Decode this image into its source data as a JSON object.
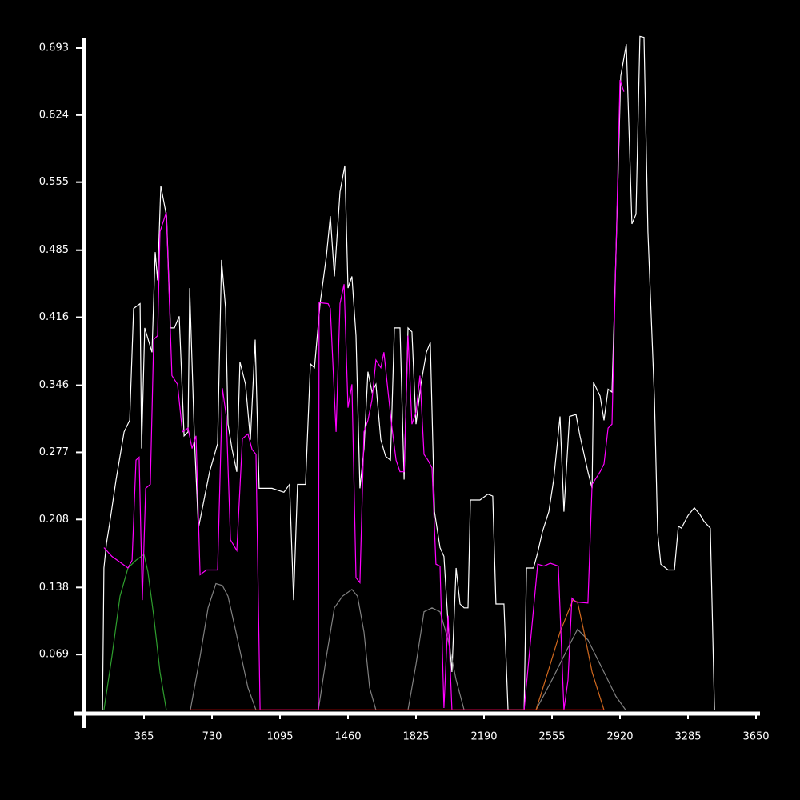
{
  "chart_data": {
    "type": "line",
    "xlim": [
      0,
      3650
    ],
    "ylim": [
      0,
      0.72
    ],
    "xticks": [
      365,
      730,
      1095,
      1460,
      1825,
      2190,
      2555,
      2920,
      3285,
      3650
    ],
    "yticks": [
      0.069,
      0.138,
      0.208,
      0.277,
      0.346,
      0.416,
      0.485,
      0.555,
      0.624,
      0.693
    ],
    "series": [
      {
        "color": "#ffffff",
        "x": [
          142,
          150,
          163,
          180,
          215,
          258,
          288,
          309,
          344,
          352,
          369,
          408,
          425,
          438,
          455,
          486,
          507,
          528,
          554,
          580,
          601,
          610,
          636,
          657,
          717,
          760,
          781,
          803,
          816,
          837,
          863,
          880,
          910,
          936,
          962,
          983,
          1052,
          1116,
          1146,
          1168,
          1189,
          1232,
          1258,
          1280,
          1310,
          1344,
          1365,
          1387,
          1417,
          1443,
          1460,
          1481,
          1503,
          1524,
          1546,
          1567,
          1589,
          1610,
          1636,
          1662,
          1688,
          1709,
          1739,
          1761,
          1782,
          1803,
          1825,
          1851,
          1881,
          1902,
          1924,
          1954,
          1975,
          1997,
          2018,
          2040,
          2061,
          2083,
          2104,
          2117,
          2168,
          2211,
          2237,
          2254,
          2297,
          2319,
          2405,
          2418,
          2456,
          2478,
          2503,
          2538,
          2564,
          2598,
          2619,
          2649,
          2684,
          2705,
          2748,
          2770,
          2778,
          2813,
          2834,
          2856,
          2877,
          2898,
          2924,
          2954,
          2984,
          3006,
          3027,
          3049,
          3070,
          3105,
          3122,
          3139,
          3178,
          3212,
          3233,
          3250,
          3285,
          3319,
          3349,
          3371,
          3405,
          3427
        ],
        "values": [
          0.012,
          0.158,
          0.183,
          0.203,
          0.249,
          0.298,
          0.31,
          0.425,
          0.43,
          0.281,
          0.405,
          0.38,
          0.483,
          0.454,
          0.551,
          0.52,
          0.405,
          0.405,
          0.417,
          0.294,
          0.298,
          0.446,
          0.29,
          0.199,
          0.257,
          0.286,
          0.475,
          0.425,
          0.306,
          0.281,
          0.257,
          0.37,
          0.347,
          0.29,
          0.393,
          0.24,
          0.24,
          0.236,
          0.244,
          0.125,
          0.244,
          0.244,
          0.368,
          0.364,
          0.43,
          0.479,
          0.52,
          0.458,
          0.545,
          0.572,
          0.446,
          0.458,
          0.397,
          0.24,
          0.281,
          0.36,
          0.339,
          0.347,
          0.29,
          0.273,
          0.269,
          0.405,
          0.405,
          0.249,
          0.405,
          0.401,
          0.306,
          0.347,
          0.38,
          0.39,
          0.216,
          0.179,
          0.17,
          0.1,
          0.051,
          0.158,
          0.121,
          0.117,
          0.117,
          0.228,
          0.228,
          0.234,
          0.232,
          0.121,
          0.121,
          0.012,
          0.012,
          0.158,
          0.158,
          0.174,
          0.195,
          0.216,
          0.249,
          0.314,
          0.216,
          0.314,
          0.316,
          0.294,
          0.257,
          0.24,
          0.349,
          0.335,
          0.31,
          0.342,
          0.339,
          0.479,
          0.664,
          0.697,
          0.512,
          0.522,
          0.705,
          0.704,
          0.504,
          0.331,
          0.195,
          0.162,
          0.156,
          0.156,
          0.201,
          0.199,
          0.212,
          0.22,
          0.213,
          0.206,
          0.199,
          0.012
        ]
      },
      {
        "color": "#808080",
        "x": [
          614,
          666,
          709,
          751,
          786,
          816,
          859,
          923,
          966
        ],
        "values": [
          0.012,
          0.067,
          0.117,
          0.142,
          0.14,
          0.129,
          0.092,
          0.035,
          0.012
        ]
      },
      {
        "color": "#808080",
        "x": [
          1301,
          1344,
          1387,
          1430,
          1481,
          1511,
          1546,
          1576,
          1610
        ],
        "values": [
          0.012,
          0.067,
          0.117,
          0.129,
          0.136,
          0.129,
          0.092,
          0.035,
          0.012
        ]
      },
      {
        "color": "#808080",
        "x": [
          1782,
          1825,
          1868,
          1911,
          1954,
          1997,
          2040,
          2083
        ],
        "values": [
          0.012,
          0.059,
          0.113,
          0.117,
          0.113,
          0.084,
          0.043,
          0.012
        ]
      },
      {
        "color": "#808080",
        "x": [
          2469,
          2555,
          2641,
          2692,
          2748,
          2813,
          2898,
          2950
        ],
        "values": [
          0.012,
          0.043,
          0.076,
          0.095,
          0.084,
          0.059,
          0.026,
          0.012
        ]
      },
      {
        "color": "#2e9e2e",
        "x": [
          150,
          193,
          236,
          279,
          322,
          365,
          386,
          417,
          451,
          485
        ],
        "values": [
          0.012,
          0.067,
          0.129,
          0.158,
          0.166,
          0.172,
          0.154,
          0.109,
          0.051,
          0.012
        ]
      },
      {
        "color": "#d2691e",
        "x": [
          2469,
          2533,
          2598,
          2667,
          2692,
          2727,
          2770,
          2834
        ],
        "values": [
          0.012,
          0.051,
          0.092,
          0.125,
          0.123,
          0.092,
          0.051,
          0.012
        ]
      },
      {
        "color": "#ff00ff",
        "x": [
          150,
          193,
          236,
          279,
          301,
          322,
          339,
          356,
          374,
          399,
          417,
          438,
          451,
          485,
          515,
          545,
          571,
          601,
          623,
          644,
          666,
          700,
          760,
          786,
          807,
          829,
          863,
          893,
          923,
          945,
          966,
          988,
          1301,
          1305,
          1353,
          1365,
          1396,
          1417,
          1439,
          1460,
          1481,
          1503,
          1524,
          1546,
          1567,
          1589,
          1610,
          1636,
          1653,
          1675,
          1696,
          1718,
          1739,
          1761,
          1782,
          1803,
          1825,
          1846,
          1868,
          1889,
          1911,
          1932,
          1954,
          1975,
          1997,
          2018,
          2405,
          2478,
          2512,
          2546,
          2589,
          2619,
          2641,
          2662,
          2684,
          2748,
          2770,
          2813,
          2834,
          2856,
          2877,
          2898,
          2920,
          2941
        ],
        "values": [
          0.179,
          0.17,
          0.164,
          0.158,
          0.166,
          0.269,
          0.272,
          0.125,
          0.24,
          0.244,
          0.393,
          0.397,
          0.504,
          0.524,
          0.356,
          0.347,
          0.298,
          0.302,
          0.281,
          0.294,
          0.151,
          0.156,
          0.156,
          0.343,
          0.314,
          0.187,
          0.176,
          0.291,
          0.296,
          0.28,
          0.275,
          0.012,
          0.012,
          0.431,
          0.43,
          0.425,
          0.298,
          0.43,
          0.45,
          0.323,
          0.347,
          0.148,
          0.143,
          0.298,
          0.31,
          0.331,
          0.372,
          0.364,
          0.38,
          0.339,
          0.302,
          0.269,
          0.257,
          0.257,
          0.397,
          0.306,
          0.318,
          0.356,
          0.275,
          0.269,
          0.261,
          0.162,
          0.16,
          0.014,
          0.109,
          0.012,
          0.012,
          0.162,
          0.16,
          0.163,
          0.16,
          0.012,
          0.043,
          0.127,
          0.123,
          0.122,
          0.244,
          0.257,
          0.265,
          0.302,
          0.306,
          0.479,
          0.66,
          0.648
        ]
      },
      {
        "color": "#ff0000",
        "x": [
          614,
          2834
        ],
        "values": [
          0.012,
          0.012
        ]
      }
    ]
  }
}
